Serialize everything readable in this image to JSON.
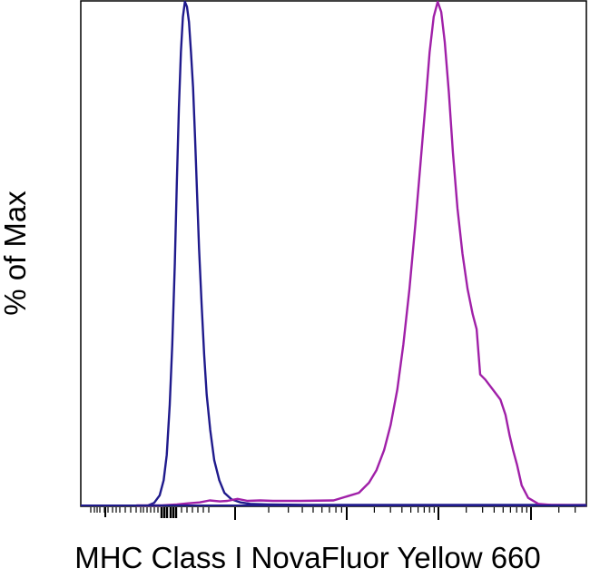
{
  "chart_data": {
    "type": "line",
    "title": "",
    "xlabel": "MHC Class I NovaFluor Yellow 660",
    "ylabel": "% of Max",
    "x_scale": "log",
    "x_tick_labels": [],
    "y_tick_labels": [],
    "xlim": [
      0,
      100
    ],
    "ylim": [
      0,
      100
    ],
    "grid": false,
    "legend": "none",
    "series": [
      {
        "color": "#1f1a8c",
        "x": [
          13.3,
          14.5,
          15.6,
          16.4,
          17.0,
          17.6,
          18.1,
          18.6,
          19.0,
          19.4,
          19.8,
          20.2,
          20.6,
          21.0,
          21.4,
          21.8,
          22.2,
          22.6,
          23.0,
          23.4,
          23.9,
          24.4,
          24.9,
          25.6,
          26.4,
          27.4,
          28.4,
          29.8,
          31.6,
          33.5,
          37.0,
          45.0,
          60.0,
          75.0,
          90.0,
          100.0
        ],
        "y": [
          0,
          0.5,
          2,
          5,
          10,
          20,
          32,
          48,
          64,
          79,
          90,
          97,
          100,
          99,
          96,
          90,
          83,
          73,
          62,
          51,
          40,
          30,
          22,
          15,
          9,
          5,
          2.5,
          1.2,
          0.6,
          0.3,
          0.2,
          0.1,
          0.1,
          0.1,
          0.1,
          0.1
        ]
      },
      {
        "color": "#a020a8",
        "x": [
          11.0,
          16.0,
          19.0,
          21.0,
          23.5,
          25.5,
          27.5,
          29.0,
          31.0,
          33.0,
          35.5,
          38.0,
          40.0,
          43.5,
          50.0,
          55.0,
          57.0,
          58.5,
          60.0,
          61.3,
          62.6,
          63.8,
          65.0,
          66.2,
          67.2,
          68.2,
          69.0,
          69.8,
          70.6,
          71.3,
          72.0,
          72.8,
          73.6,
          74.5,
          75.5,
          76.5,
          77.5,
          78.3,
          79.0,
          80.0,
          81.5,
          83.0,
          84.0,
          84.8,
          85.5,
          86.3,
          87.2,
          88.5,
          90.5,
          93.0,
          100.0
        ],
        "y": [
          0,
          0,
          0.2,
          0.4,
          0.6,
          1.0,
          0.8,
          0.9,
          1.3,
          0.9,
          1.0,
          0.9,
          0.9,
          0.9,
          1.0,
          2.5,
          4.5,
          7,
          11,
          16,
          23,
          32,
          43,
          56,
          68,
          80,
          90,
          97,
          100,
          98,
          92,
          82,
          70,
          59,
          50,
          43,
          38,
          35,
          26,
          25,
          23,
          21,
          18,
          14,
          11,
          8,
          4,
          1.5,
          0.3,
          0.1,
          0
        ]
      }
    ]
  }
}
